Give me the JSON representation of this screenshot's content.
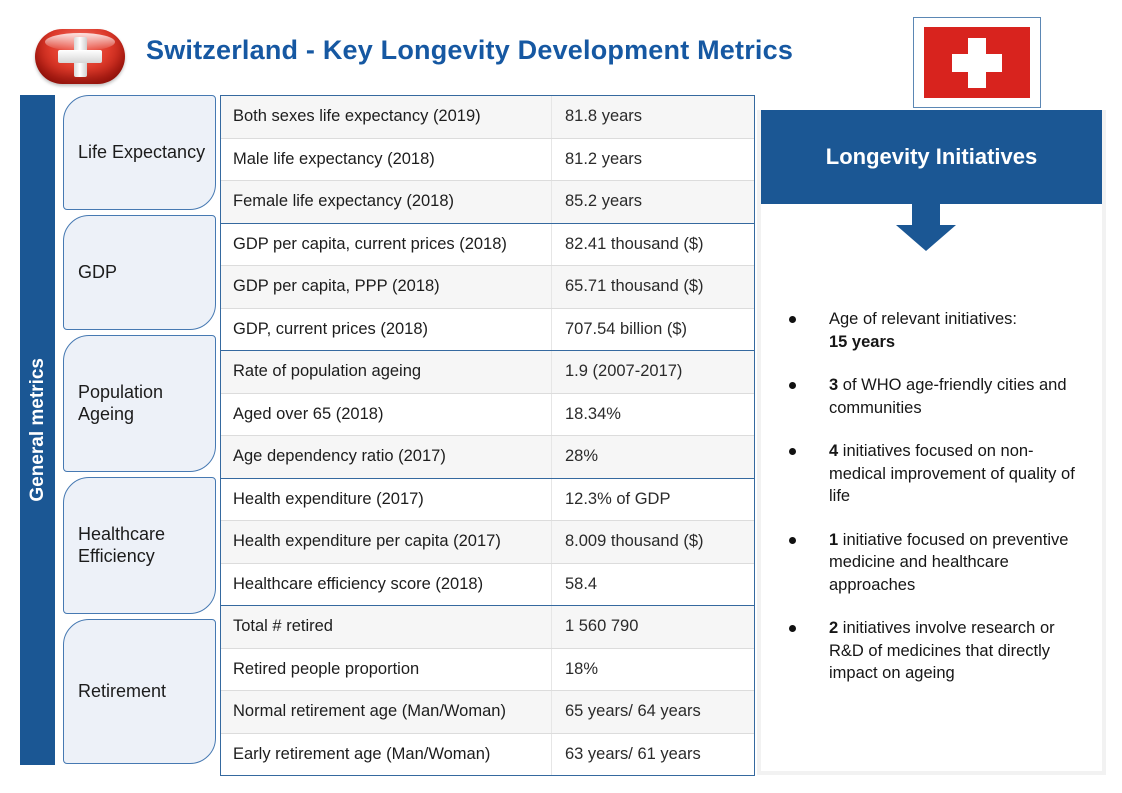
{
  "header": {
    "title": "Switzerland - Key Longevity Development Metrics"
  },
  "sidebar": {
    "label": "General metrics"
  },
  "table": {
    "groups": [
      {
        "category": "Life Expectancy",
        "rows": [
          {
            "label": "Both sexes life expectancy (2019)",
            "value": "81.8 years"
          },
          {
            "label": "Male life expectancy (2018)",
            "value": "81.2  years"
          },
          {
            "label": "Female life expectancy (2018)",
            "value": "85.2 years"
          }
        ]
      },
      {
        "category": "GDP",
        "rows": [
          {
            "label": "GDP per capita, current prices (2018)",
            "value": "82.41 thousand ($)"
          },
          {
            "label": "GDP per capita, PPP (2018)",
            "value": "65.71 thousand ($)"
          },
          {
            "label": "GDP, current prices (2018)",
            "value": "707.54 billion ($)"
          }
        ]
      },
      {
        "category": "Population Ageing",
        "rows": [
          {
            "label": "Rate of  population ageing",
            "value": "1.9 (2007-2017)"
          },
          {
            "label": "Aged over 65 (2018)",
            "value": "18.34%"
          },
          {
            "label": "Age dependency ratio (2017)",
            "value": "28%"
          }
        ]
      },
      {
        "category": "Healthcare Efficiency",
        "rows": [
          {
            "label": "Health expenditure (2017)",
            "value": "12.3% of GDP"
          },
          {
            "label": "Health expenditure per capita (2017)",
            "value": "8.009 thousand ($)"
          },
          {
            "label": "Healthcare efficiency score (2018)",
            "value": "58.4"
          }
        ]
      },
      {
        "category": "Retirement",
        "rows": [
          {
            "label": "Total # retired",
            "value": "1 560 790"
          },
          {
            "label": "Retired people proportion",
            "value": "18%"
          },
          {
            "label": "Normal retirement age (Man/Woman)",
            "value": "65 years/ 64 years"
          },
          {
            "label": "Early retirement age (Man/Woman)",
            "value": "63 years/ 61 years"
          }
        ]
      }
    ]
  },
  "initiatives": {
    "title": "Longevity Initiatives",
    "items": [
      {
        "segments": [
          {
            "text": "Age of relevant initiatives:",
            "bold": false
          },
          {
            "break": true
          },
          {
            "text": "15 years",
            "bold": true
          }
        ]
      },
      {
        "segments": [
          {
            "text": "3",
            "bold": true
          },
          {
            "text": " of WHO age-friendly cities and communities",
            "bold": false
          }
        ]
      },
      {
        "segments": [
          {
            "text": "4",
            "bold": true
          },
          {
            "text": " initiatives focused on non-medical improvement of quality of life",
            "bold": false
          }
        ]
      },
      {
        "segments": [
          {
            "text": "1",
            "bold": true
          },
          {
            "text": " initiative focused on preventive medicine and healthcare approaches",
            "bold": false
          }
        ]
      },
      {
        "segments": [
          {
            "text": "2",
            "bold": true
          },
          {
            "text": " initiatives involve research or R&D of medicines that directly impact on ageing",
            "bold": false
          }
        ]
      }
    ]
  },
  "colors": {
    "brand_blue": "#1b5794",
    "title_blue": "#1658a2",
    "flag_red": "#d8231e",
    "category_fill": "#edf1f8",
    "category_border": "#4679b2",
    "row_alt": "#f6f6f6",
    "group_border": "#35699f"
  }
}
